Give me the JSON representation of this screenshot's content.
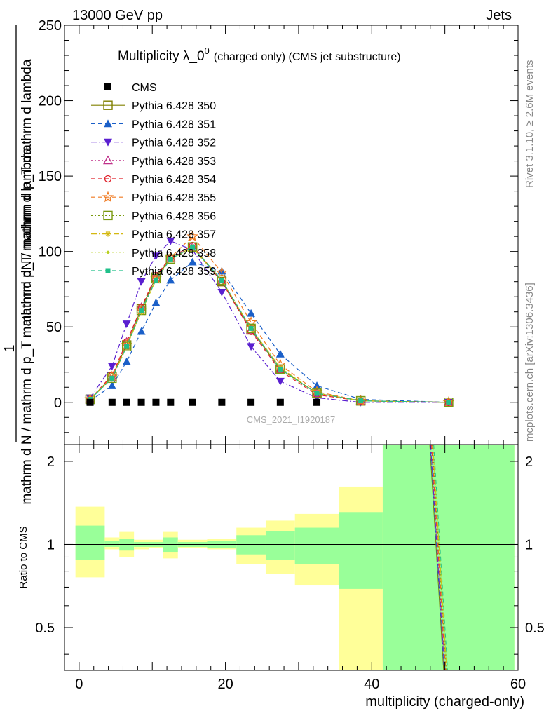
{
  "header": {
    "left": "13000 GeV pp",
    "right": "Jets"
  },
  "side_labels": {
    "rivet": "Rivet 3.1.10, ≥ 2.6M events",
    "mcplots": "mcplots.cern.ch [arXiv:1306.3436]"
  },
  "chart_data": [
    {
      "type": "line",
      "panel": "main",
      "title_main": "Multiplicity λ_0",
      "title_sup": "0",
      "title_paren": "(charged only) (CMS jet substructure)",
      "ylabel_num": "1",
      "ylabel_den": "mathrm d N / mathrm d p_T mathrm d p_T mathrm d lambda",
      "ylabel_frac_num": "mathrm d²N",
      "ylabel_frac_den": "mathrm d N / mathrm d p_T mathrm d p_T mathrm d lambda",
      "ylabel_text": "mathrm dN / mathrm d p_T mathrm d lambda",
      "watermark": "CMS_2021_I1920187",
      "xlim": [
        -2,
        60
      ],
      "ylim": [
        -28,
        250
      ],
      "y_ticks": [
        0,
        50,
        100,
        150,
        200,
        250
      ],
      "y_tick_labels": [
        "0",
        "50",
        "100",
        "150",
        "200",
        "250"
      ],
      "data": {
        "name": "CMS",
        "color": "#000000",
        "x": [
          1.5,
          4.5,
          6.5,
          8.5,
          10.5,
          12.5,
          15.5,
          19.5,
          23.5,
          27.5,
          32.5
        ],
        "y": [
          0,
          0,
          0,
          0,
          0,
          0,
          0,
          0,
          0,
          0,
          0
        ]
      },
      "x": [
        1.5,
        4.5,
        6.5,
        8.5,
        10.5,
        12.5,
        15.5,
        19.5,
        23.5,
        27.5,
        32.5,
        38.5,
        50.5
      ],
      "series": [
        {
          "name": "Pythia 6.428 350",
          "color": "#808000",
          "marker": "open-square",
          "dash": "solid",
          "values": [
            2,
            17,
            38,
            62,
            83,
            95,
            103,
            80,
            48,
            22,
            6,
            1,
            0
          ]
        },
        {
          "name": "Pythia 6.428 351",
          "color": "#1a5fc8",
          "marker": "filled-triangle-up",
          "dash": "dash",
          "values": [
            1,
            11,
            27,
            47,
            66,
            81,
            93,
            87,
            59,
            32,
            11,
            2,
            0
          ]
        },
        {
          "name": "Pythia 6.428 352",
          "color": "#5a1fd0",
          "marker": "filled-triangle-down",
          "dash": "dashdot",
          "values": [
            3,
            24,
            52,
            80,
            97,
            107,
            101,
            73,
            37,
            14,
            3,
            0,
            0
          ]
        },
        {
          "name": "Pythia 6.428 353",
          "color": "#c0308a",
          "marker": "open-triangle-up",
          "dash": "dot",
          "values": [
            2,
            17,
            40,
            63,
            83,
            96,
            103,
            80,
            48,
            22,
            6,
            1,
            0
          ]
        },
        {
          "name": "Pythia 6.428 354",
          "color": "#e0202a",
          "marker": "open-circle",
          "dash": "dash",
          "values": [
            2,
            18,
            40,
            63,
            84,
            96,
            104,
            80,
            47,
            21,
            5,
            1,
            0
          ]
        },
        {
          "name": "Pythia 6.428 355",
          "color": "#f07a20",
          "marker": "open-star",
          "dash": "dash",
          "values": [
            2,
            17,
            38,
            61,
            82,
            96,
            110,
            86,
            53,
            25,
            7,
            1,
            0
          ]
        },
        {
          "name": "Pythia 6.428 356",
          "color": "#7a9a10",
          "marker": "open-square",
          "dash": "dot",
          "values": [
            2,
            16,
            37,
            61,
            82,
            95,
            103,
            81,
            49,
            22,
            6,
            1,
            0
          ]
        },
        {
          "name": "Pythia 6.428 357",
          "color": "#d4b810",
          "marker": "small-star",
          "dash": "dashdot",
          "values": [
            2,
            16,
            37,
            60,
            81,
            95,
            103,
            81,
            49,
            23,
            6,
            1,
            0
          ]
        },
        {
          "name": "Pythia 6.428 358",
          "color": "#b8d020",
          "marker": "small-dot",
          "dash": "dot",
          "values": [
            2,
            16,
            37,
            60,
            81,
            95,
            102,
            81,
            49,
            23,
            6,
            1,
            0
          ]
        },
        {
          "name": "Pythia 6.428 359",
          "color": "#20c08a",
          "marker": "filled-square-small",
          "dash": "dash",
          "values": [
            2,
            16,
            37,
            61,
            81,
            95,
            103,
            81,
            49,
            22,
            6,
            1,
            0
          ]
        }
      ]
    },
    {
      "type": "area",
      "panel": "ratio",
      "ylabel": "Ratio to CMS",
      "xlabel": "multiplicity (charged-only)",
      "xlim": [
        -2,
        60
      ],
      "ylim": [
        0.35,
        2.3
      ],
      "x_ticks": [
        0,
        20,
        40,
        60
      ],
      "x_tick_labels": [
        "0",
        "20",
        "40",
        "60"
      ],
      "y_ticks": [
        0.5,
        1,
        2
      ],
      "y_tick_labels": [
        "0.5",
        "1",
        "2"
      ],
      "reference": 1,
      "bins": [
        {
          "lo": -0.5,
          "hi": 3.5,
          "inner": [
            0.88,
            1.17
          ],
          "outer": [
            0.76,
            1.37
          ]
        },
        {
          "lo": 3.5,
          "hi": 5.5,
          "inner": [
            0.98,
            1.03
          ],
          "outer": [
            0.96,
            1.06
          ]
        },
        {
          "lo": 5.5,
          "hi": 7.5,
          "inner": [
            0.95,
            1.05
          ],
          "outer": [
            0.9,
            1.11
          ]
        },
        {
          "lo": 7.5,
          "hi": 9.5,
          "inner": [
            0.98,
            1.02
          ],
          "outer": [
            0.96,
            1.04
          ]
        },
        {
          "lo": 9.5,
          "hi": 11.5,
          "inner": [
            0.98,
            1.02
          ],
          "outer": [
            0.97,
            1.04
          ]
        },
        {
          "lo": 11.5,
          "hi": 13.5,
          "inner": [
            0.94,
            1.06
          ],
          "outer": [
            0.89,
            1.11
          ]
        },
        {
          "lo": 13.5,
          "hi": 17.5,
          "inner": [
            0.98,
            1.02
          ],
          "outer": [
            0.97,
            1.04
          ]
        },
        {
          "lo": 17.5,
          "hi": 21.5,
          "inner": [
            0.97,
            1.03
          ],
          "outer": [
            0.96,
            1.05
          ]
        },
        {
          "lo": 21.5,
          "hi": 25.5,
          "inner": [
            0.92,
            1.08
          ],
          "outer": [
            0.85,
            1.15
          ]
        },
        {
          "lo": 25.5,
          "hi": 29.5,
          "inner": [
            0.88,
            1.12
          ],
          "outer": [
            0.78,
            1.22
          ]
        },
        {
          "lo": 29.5,
          "hi": 35.5,
          "inner": [
            0.85,
            1.15
          ],
          "outer": [
            0.71,
            1.29
          ]
        },
        {
          "lo": 35.5,
          "hi": 41.5,
          "inner": [
            0.69,
            1.31
          ],
          "outer": [
            0.35,
            1.62
          ]
        },
        {
          "lo": 41.5,
          "hi": 59.5,
          "inner": [
            0.35,
            2.3
          ],
          "outer": [
            0.35,
            2.3
          ]
        }
      ],
      "ratio_line": {
        "x": [
          48.2,
          50.1
        ],
        "y": [
          2.3,
          0.35
        ]
      },
      "colors": {
        "inner": "#99ff99",
        "outer": "#ffff99"
      }
    }
  ]
}
